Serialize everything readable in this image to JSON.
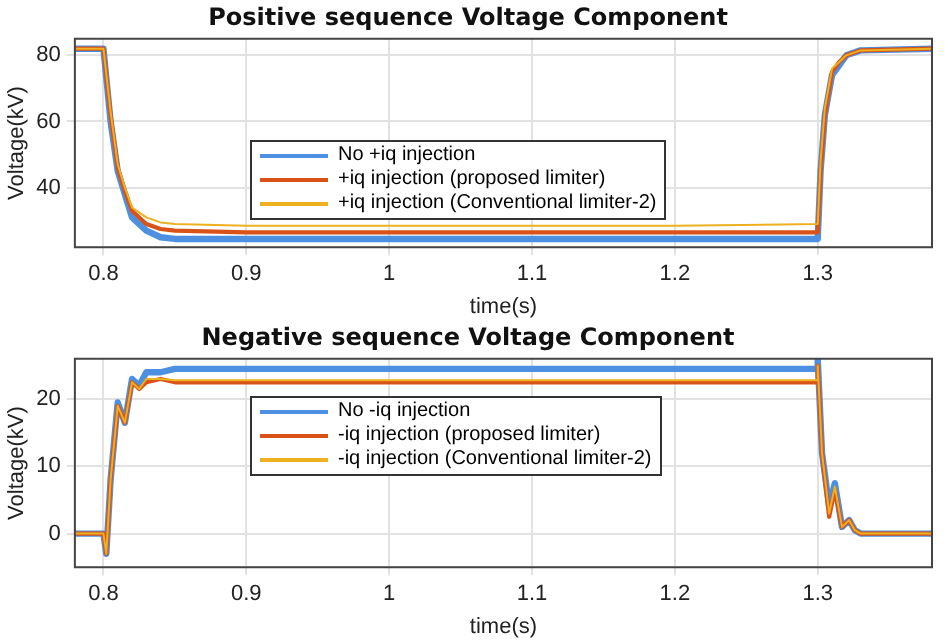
{
  "chart_data": [
    {
      "type": "line",
      "title": "Positive sequence Voltage Component",
      "xlabel": "time(s)",
      "ylabel": "Voltage(kV)",
      "xlim": [
        0.78,
        1.38
      ],
      "xticks": [
        0.8,
        0.9,
        1,
        1.1,
        1.2,
        1.3
      ],
      "ylim": [
        22,
        85
      ],
      "yticks": [
        40,
        60,
        80
      ],
      "grid": true,
      "legend": "center",
      "marker": "none",
      "line_style": "solid",
      "x": [
        0.78,
        0.8,
        0.805,
        0.81,
        0.815,
        0.82,
        0.83,
        0.84,
        0.85,
        0.9,
        1.0,
        1.1,
        1.2,
        1.3,
        1.302,
        1.305,
        1.31,
        1.315,
        1.32,
        1.33,
        1.38
      ],
      "series": [
        {
          "name": "No +iq injection",
          "color": "#4d8fe0",
          "values": [
            82,
            82,
            60,
            45,
            38,
            31,
            27,
            25,
            24.5,
            24.5,
            24.5,
            24.5,
            24.5,
            24.5,
            45,
            62,
            74,
            77,
            80,
            81.5,
            82
          ]
        },
        {
          "name": "+iq injection (proposed limiter)",
          "color": "#d95319",
          "values": [
            82,
            82,
            62,
            46,
            39,
            33,
            29,
            27.5,
            27,
            26.5,
            26.5,
            26.5,
            26.5,
            26.5,
            45,
            62,
            75,
            78,
            80,
            81.5,
            82
          ]
        },
        {
          "name": "+iq injection (Conventional limiter-2)",
          "color": "#edb120",
          "values": [
            82,
            82,
            63,
            47,
            40,
            34,
            31,
            29.5,
            29,
            28.5,
            28.5,
            28.5,
            28.5,
            29,
            48,
            64,
            76,
            78,
            80,
            81.5,
            82
          ]
        }
      ]
    },
    {
      "type": "line",
      "title": "Negative sequence Voltage Component",
      "xlabel": "time(s)",
      "ylabel": "Voltage(kV)",
      "xlim": [
        0.78,
        1.38
      ],
      "xticks": [
        0.8,
        0.9,
        1,
        1.1,
        1.2,
        1.3
      ],
      "ylim": [
        -5,
        26
      ],
      "yticks": [
        0,
        10,
        20
      ],
      "grid": true,
      "legend": "top",
      "marker": "none",
      "line_style": "solid",
      "x": [
        0.78,
        0.8,
        0.802,
        0.805,
        0.81,
        0.815,
        0.82,
        0.825,
        0.83,
        0.84,
        0.85,
        0.9,
        1.0,
        1.1,
        1.2,
        1.299,
        1.3,
        1.303,
        1.308,
        1.312,
        1.317,
        1.322,
        1.326,
        1.33,
        1.34,
        1.38
      ],
      "series": [
        {
          "name": "No -iq injection",
          "color": "#4d8fe0",
          "values": [
            0,
            0,
            -3,
            8,
            19.5,
            16.5,
            23,
            22,
            24,
            24,
            24.5,
            24.5,
            24.5,
            24.5,
            24.5,
            24.5,
            26,
            12,
            4,
            7.5,
            1,
            2,
            0.5,
            0,
            0,
            0
          ]
        },
        {
          "name": "-iq injection (proposed limiter)",
          "color": "#d95319",
          "values": [
            0,
            0,
            -3,
            8,
            19,
            16.5,
            22.5,
            21.5,
            22.5,
            23,
            22.5,
            22.5,
            22.5,
            22.5,
            22.5,
            22.5,
            25,
            12,
            2.5,
            6.5,
            1,
            2,
            0.5,
            0,
            0,
            0
          ]
        },
        {
          "name": "-iq injection (Conventional limiter-2)",
          "color": "#edb120",
          "values": [
            0,
            0,
            -3,
            8,
            19,
            16.5,
            22.5,
            21.5,
            23,
            23,
            22.8,
            22.8,
            22.8,
            22.8,
            22.8,
            22.8,
            25,
            12,
            3,
            7,
            1,
            2,
            0.5,
            0,
            0,
            0
          ]
        }
      ]
    }
  ]
}
